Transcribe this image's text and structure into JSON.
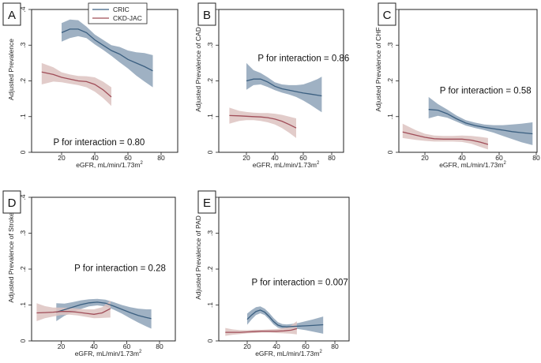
{
  "figure": {
    "legend": [
      {
        "name": "CRIC",
        "color": "#3b5f80"
      },
      {
        "name": "CKD-JAC",
        "color": "#a04d58"
      }
    ],
    "band_colors": {
      "CRIC": "#8ea3b8",
      "CKD-JAC": "#ddc3c1"
    }
  },
  "chart_data": [
    {
      "panel": "A",
      "type": "line",
      "ylabel": "Adjusted Prevalence",
      "xlabel": "eGFR, mL/min/1.73m",
      "xlabel_sup": "2",
      "xticks": [
        20,
        40,
        60,
        80
      ],
      "xtick_labels": [
        "20",
        "40",
        "60",
        "80"
      ],
      "yticks": [
        0,
        0.1,
        0.2,
        0.3,
        0.4
      ],
      "ytick_labels": [
        "0",
        ".1",
        ".2",
        ".3",
        ".4"
      ],
      "xlim": [
        0,
        80
      ],
      "ylim": [
        0,
        0.4
      ],
      "annotation": {
        "text": "P for interaction = 0.80",
        "x": 15,
        "y": 0.02
      },
      "legend_position": "top-center",
      "series": [
        {
          "name": "CRIC",
          "x": [
            20,
            25,
            30,
            35,
            40,
            45,
            50,
            55,
            60,
            65,
            70,
            75
          ],
          "y": [
            0.335,
            0.345,
            0.345,
            0.335,
            0.315,
            0.3,
            0.285,
            0.275,
            0.26,
            0.25,
            0.24,
            0.228
          ],
          "lower": [
            0.31,
            0.32,
            0.325,
            0.32,
            0.302,
            0.287,
            0.27,
            0.252,
            0.235,
            0.215,
            0.198,
            0.182
          ],
          "upper": [
            0.362,
            0.372,
            0.37,
            0.352,
            0.33,
            0.315,
            0.3,
            0.295,
            0.285,
            0.28,
            0.278,
            0.272
          ]
        },
        {
          "name": "CKD-JAC",
          "x": [
            8,
            15,
            20,
            25,
            30,
            35,
            40,
            45,
            50
          ],
          "y": [
            0.225,
            0.218,
            0.21,
            0.205,
            0.2,
            0.198,
            0.19,
            0.175,
            0.155
          ],
          "lower": [
            0.19,
            0.198,
            0.196,
            0.192,
            0.188,
            0.182,
            0.17,
            0.152,
            0.13
          ],
          "upper": [
            0.25,
            0.238,
            0.224,
            0.218,
            0.214,
            0.213,
            0.21,
            0.198,
            0.182
          ]
        }
      ]
    },
    {
      "panel": "B",
      "type": "line",
      "ylabel": "Adjusted Prevalence of CAD",
      "xlabel": "eGFR, mL/min/1.73m",
      "xlabel_sup": "2",
      "xticks": [
        20,
        40,
        60,
        80
      ],
      "xtick_labels": [
        "20",
        "40",
        "60",
        "80"
      ],
      "yticks": [
        0,
        0.1,
        0.2,
        0.3,
        0.4
      ],
      "ytick_labels": [
        "0",
        ".1",
        ".2",
        ".3",
        ".4"
      ],
      "xlim": [
        0,
        80
      ],
      "ylim": [
        0,
        0.4
      ],
      "annotation": {
        "text": "P for interaction = 0.86",
        "x": 28,
        "y": 0.255
      },
      "series": [
        {
          "name": "CRIC",
          "x": [
            20,
            25,
            30,
            35,
            40,
            45,
            50,
            55,
            60,
            65,
            70,
            73
          ],
          "y": [
            0.2,
            0.205,
            0.205,
            0.197,
            0.185,
            0.178,
            0.174,
            0.17,
            0.166,
            0.163,
            0.16,
            0.158
          ],
          "lower": [
            0.175,
            0.188,
            0.19,
            0.183,
            0.174,
            0.167,
            0.162,
            0.155,
            0.145,
            0.133,
            0.12,
            0.112
          ],
          "upper": [
            0.25,
            0.23,
            0.222,
            0.21,
            0.196,
            0.19,
            0.188,
            0.188,
            0.19,
            0.197,
            0.205,
            0.212
          ]
        },
        {
          "name": "CKD-JAC",
          "x": [
            8,
            15,
            20,
            25,
            30,
            35,
            40,
            45,
            50,
            55
          ],
          "y": [
            0.103,
            0.102,
            0.101,
            0.1,
            0.099,
            0.097,
            0.093,
            0.087,
            0.078,
            0.068
          ],
          "lower": [
            0.08,
            0.088,
            0.09,
            0.09,
            0.088,
            0.084,
            0.078,
            0.068,
            0.055,
            0.04
          ],
          "upper": [
            0.125,
            0.116,
            0.113,
            0.111,
            0.11,
            0.11,
            0.108,
            0.105,
            0.1,
            0.095
          ]
        }
      ]
    },
    {
      "panel": "C",
      "type": "line",
      "ylabel": "Adjusted Prevalence of CHF",
      "xlabel": "eGFR, mL/min/1.73m",
      "xlabel_sup": "2",
      "xticks": [
        20,
        40,
        60,
        80
      ],
      "xtick_labels": [
        "20",
        "40",
        "60",
        "80"
      ],
      "yticks": [
        0,
        0.1,
        0.2,
        0.3,
        0.4
      ],
      "ytick_labels": [
        "0",
        ".1",
        ".2",
        ".3",
        ".4"
      ],
      "xlim": [
        0,
        80
      ],
      "ylim": [
        0,
        0.4
      ],
      "annotation": {
        "text": "P for interaction = 0.58",
        "x": 28,
        "y": 0.165
      },
      "series": [
        {
          "name": "CRIC",
          "x": [
            22,
            27,
            32,
            37,
            42,
            47,
            52,
            57,
            62,
            67,
            72,
            78
          ],
          "y": [
            0.12,
            0.118,
            0.108,
            0.094,
            0.082,
            0.075,
            0.07,
            0.066,
            0.062,
            0.058,
            0.055,
            0.052
          ],
          "lower": [
            0.095,
            0.102,
            0.097,
            0.086,
            0.075,
            0.068,
            0.062,
            0.055,
            0.046,
            0.037,
            0.028,
            0.02
          ],
          "upper": [
            0.155,
            0.135,
            0.12,
            0.103,
            0.09,
            0.083,
            0.078,
            0.076,
            0.076,
            0.078,
            0.08,
            0.084
          ]
        },
        {
          "name": "CKD-JAC",
          "x": [
            8,
            15,
            20,
            25,
            30,
            35,
            40,
            45,
            50,
            54
          ],
          "y": [
            0.057,
            0.048,
            0.042,
            0.038,
            0.037,
            0.037,
            0.037,
            0.034,
            0.028,
            0.022
          ],
          "lower": [
            0.04,
            0.035,
            0.032,
            0.03,
            0.03,
            0.03,
            0.029,
            0.024,
            0.015,
            0.008
          ],
          "upper": [
            0.08,
            0.062,
            0.052,
            0.047,
            0.046,
            0.046,
            0.047,
            0.046,
            0.043,
            0.04
          ]
        }
      ]
    },
    {
      "panel": "D",
      "type": "line",
      "ylabel": "Adjusted Prevalence of Stroke",
      "xlabel": "eGFR, mL/min/1.73m",
      "xlabel_sup": "2",
      "xticks": [
        20,
        40,
        60,
        80
      ],
      "xtick_labels": [
        "20",
        "40",
        "60",
        "80"
      ],
      "yticks": [
        0,
        0.1,
        0.2,
        0.3,
        0.4
      ],
      "ytick_labels": [
        "0",
        ".1",
        ".2",
        ".3",
        ".4"
      ],
      "xlim": [
        0,
        80
      ],
      "ylim": [
        0,
        0.4
      ],
      "annotation": {
        "text": "P for interaction = 0.28",
        "x": 28,
        "y": 0.195
      },
      "series": [
        {
          "name": "CRIC",
          "x": [
            17,
            22,
            27,
            32,
            37,
            42,
            47,
            52,
            57,
            62,
            67,
            72,
            75
          ],
          "y": [
            0.08,
            0.087,
            0.094,
            0.101,
            0.106,
            0.108,
            0.105,
            0.097,
            0.088,
            0.079,
            0.071,
            0.065,
            0.062
          ],
          "lower": [
            0.055,
            0.07,
            0.08,
            0.089,
            0.096,
            0.099,
            0.096,
            0.087,
            0.076,
            0.063,
            0.051,
            0.04,
            0.034
          ],
          "upper": [
            0.105,
            0.104,
            0.108,
            0.113,
            0.116,
            0.117,
            0.115,
            0.108,
            0.1,
            0.094,
            0.09,
            0.088,
            0.088
          ]
        },
        {
          "name": "CKD-JAC",
          "x": [
            5,
            10,
            15,
            20,
            25,
            30,
            35,
            40,
            45,
            50
          ],
          "y": [
            0.078,
            0.079,
            0.08,
            0.082,
            0.082,
            0.08,
            0.077,
            0.074,
            0.078,
            0.09
          ],
          "lower": [
            0.055,
            0.063,
            0.068,
            0.072,
            0.073,
            0.071,
            0.067,
            0.063,
            0.064,
            0.065
          ],
          "upper": [
            0.105,
            0.097,
            0.093,
            0.093,
            0.092,
            0.09,
            0.088,
            0.088,
            0.094,
            0.112
          ]
        }
      ]
    },
    {
      "panel": "E",
      "type": "line",
      "ylabel": "Adjusted Prevalence of PAD",
      "xlabel": "eGFR, mL/min/1.73m",
      "xlabel_sup": "2",
      "xticks": [
        20,
        40,
        60,
        80
      ],
      "xtick_labels": [
        "20",
        "40",
        "60",
        "80"
      ],
      "yticks": [
        0,
        0.1,
        0.2,
        0.3,
        0.4
      ],
      "ytick_labels": [
        "0",
        ".1",
        ".2",
        ".3",
        ".4"
      ],
      "xlim": [
        0,
        80
      ],
      "ylim": [
        0,
        0.4
      ],
      "annotation": {
        "text": "P for interaction = 0.007",
        "x": 23,
        "y": 0.155
      },
      "series": [
        {
          "name": "CRIC",
          "x": [
            20,
            23,
            26,
            29,
            32,
            35,
            38,
            41,
            44,
            47,
            50,
            55,
            60,
            65,
            72
          ],
          "y": [
            0.06,
            0.072,
            0.082,
            0.086,
            0.08,
            0.068,
            0.054,
            0.044,
            0.04,
            0.039,
            0.04,
            0.041,
            0.042,
            0.043,
            0.045
          ],
          "lower": [
            0.045,
            0.06,
            0.072,
            0.077,
            0.072,
            0.06,
            0.046,
            0.037,
            0.034,
            0.033,
            0.034,
            0.033,
            0.03,
            0.026,
            0.02
          ],
          "upper": [
            0.076,
            0.086,
            0.094,
            0.096,
            0.09,
            0.078,
            0.064,
            0.052,
            0.047,
            0.046,
            0.047,
            0.05,
            0.055,
            0.06,
            0.068
          ]
        },
        {
          "name": "CKD-JAC",
          "x": [
            5,
            10,
            15,
            20,
            25,
            30,
            35,
            40,
            45,
            50,
            54
          ],
          "y": [
            0.024,
            0.024,
            0.024,
            0.025,
            0.026,
            0.027,
            0.027,
            0.027,
            0.028,
            0.03,
            0.034
          ],
          "lower": [
            0.014,
            0.017,
            0.019,
            0.021,
            0.022,
            0.023,
            0.023,
            0.022,
            0.021,
            0.02,
            0.018
          ],
          "upper": [
            0.036,
            0.032,
            0.03,
            0.03,
            0.031,
            0.031,
            0.032,
            0.033,
            0.036,
            0.043,
            0.055
          ]
        }
      ]
    }
  ]
}
